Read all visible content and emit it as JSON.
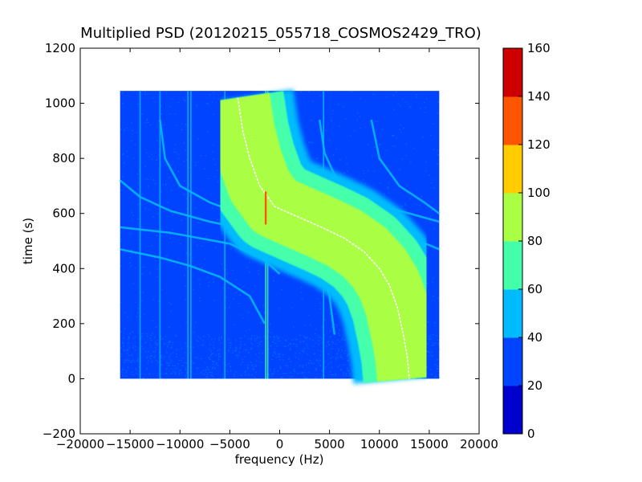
{
  "chart_data": {
    "type": "heatmap",
    "title": "Multiplied PSD (20120215_055718_COSMOS2429_TRO)",
    "xlabel": "frequency (Hz)",
    "ylabel": "time (s)",
    "xlim": [
      -20000,
      20000
    ],
    "ylim": [
      -200,
      1200
    ],
    "x_ticks": [
      -20000,
      -15000,
      -10000,
      -5000,
      0,
      5000,
      10000,
      15000,
      20000
    ],
    "y_ticks": [
      -200,
      0,
      200,
      400,
      600,
      800,
      1000,
      1200
    ],
    "x_tick_labels": [
      "−20000",
      "−15000",
      "−10000",
      "−5000",
      "0",
      "5000",
      "10000",
      "15000",
      "20000"
    ],
    "y_tick_labels": [
      "−200",
      "0",
      "200",
      "400",
      "600",
      "800",
      "1000",
      "1200"
    ],
    "data_extent": {
      "x": [
        -16000,
        16000
      ],
      "y": [
        0,
        1045
      ]
    },
    "background_level": 30,
    "colorbar": {
      "levels": [
        0,
        20,
        40,
        60,
        80,
        100,
        120,
        140,
        160
      ],
      "tick_labels": [
        "0",
        "20",
        "40",
        "60",
        "80",
        "100",
        "120",
        "140",
        "160"
      ],
      "colors": [
        "#0000cc",
        "#0044ff",
        "#00bbff",
        "#44ffaa",
        "#aaff44",
        "#ffcc00",
        "#ff5500",
        "#cc0000"
      ]
    },
    "features": {
      "main_doppler_trace": {
        "level": 90,
        "points": [
          [
            -4200,
            1020
          ],
          [
            -3700,
            900
          ],
          [
            -3000,
            800
          ],
          [
            -2000,
            700
          ],
          [
            -500,
            625
          ],
          [
            2000,
            585
          ],
          [
            4500,
            545
          ],
          [
            6500,
            510
          ],
          [
            8500,
            460
          ],
          [
            10000,
            400
          ],
          [
            11000,
            340
          ],
          [
            11800,
            260
          ],
          [
            12400,
            160
          ],
          [
            12800,
            80
          ],
          [
            13000,
            0
          ]
        ]
      },
      "secondary_traces": [
        {
          "level": 50,
          "points": [
            [
              -16000,
              470
            ],
            [
              -12000,
              440
            ],
            [
              -9000,
              410
            ],
            [
              -6000,
              370
            ],
            [
              -3000,
              300
            ],
            [
              -1500,
              200
            ]
          ]
        },
        {
          "level": 50,
          "points": [
            [
              -16000,
              720
            ],
            [
              -14000,
              660
            ],
            [
              -11000,
              610
            ],
            [
              -7000,
              570
            ],
            [
              -3000,
              540
            ],
            [
              0,
              520
            ],
            [
              2000,
              500
            ],
            [
              4000,
              430
            ],
            [
              5000,
              300
            ],
            [
              5500,
              160
            ]
          ]
        },
        {
          "level": 50,
          "points": [
            [
              -16000,
              550
            ],
            [
              -11000,
              530
            ],
            [
              -5000,
              490
            ],
            [
              -1500,
              430
            ],
            [
              0,
              380
            ]
          ]
        },
        {
          "level": 50,
          "points": [
            [
              -12000,
              940
            ],
            [
              -11500,
              800
            ],
            [
              -10000,
              700
            ],
            [
              -7000,
              640
            ],
            [
              -4000,
              600
            ]
          ]
        },
        {
          "level": 50,
          "points": [
            [
              4000,
              940
            ],
            [
              4500,
              820
            ],
            [
              6000,
              700
            ],
            [
              9000,
              640
            ],
            [
              13000,
              600
            ],
            [
              16000,
              570
            ]
          ]
        },
        {
          "level": 50,
          "points": [
            [
              9200,
              940
            ],
            [
              10000,
              800
            ],
            [
              12000,
              700
            ],
            [
              14500,
              640
            ],
            [
              16000,
              600
            ]
          ]
        },
        {
          "level": 50,
          "points": [
            [
              3500,
              700
            ],
            [
              6000,
              640
            ],
            [
              10000,
              560
            ],
            [
              16000,
              470
            ]
          ]
        }
      ],
      "vertical_lines": [
        {
          "x": -9200,
          "level": 50
        },
        {
          "x": -8900,
          "level": 50
        },
        {
          "x": -14000,
          "level": 40
        },
        {
          "x": -12000,
          "level": 40
        },
        {
          "x": -5500,
          "level": 40
        },
        {
          "x": 4400,
          "level": 40
        },
        {
          "x": -1400,
          "level": 60
        },
        {
          "x": -1200,
          "level": 60
        }
      ],
      "hot_spot": {
        "x": -1400,
        "y": 620,
        "level": 130
      }
    }
  }
}
